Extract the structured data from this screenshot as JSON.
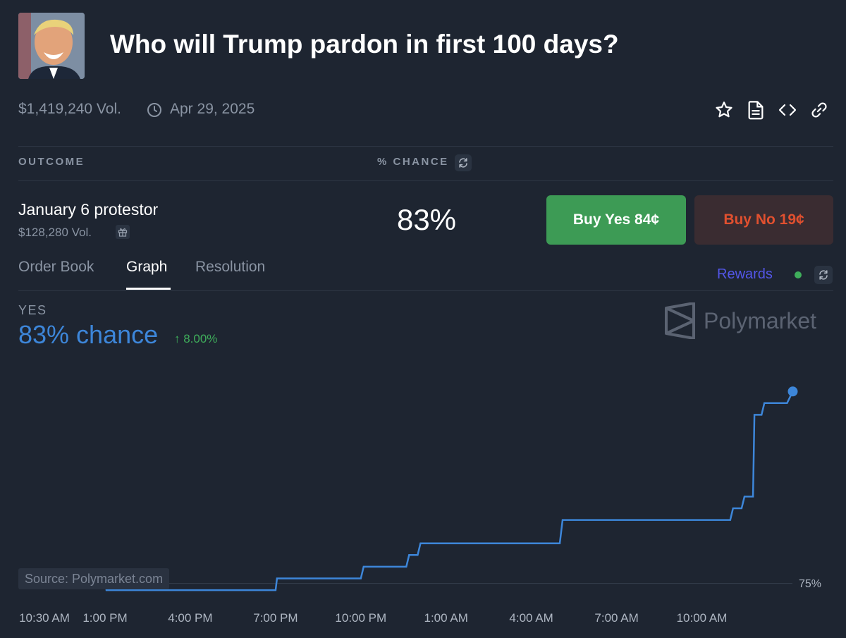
{
  "header": {
    "title": "Who will Trump pardon in first 100 days?",
    "volume": "$1,419,240 Vol.",
    "date": "Apr 29, 2025"
  },
  "table": {
    "col_outcome": "OUTCOME",
    "col_chance": "% CHANCE"
  },
  "outcome": {
    "name": "January 6 protestor",
    "volume": "$128,280 Vol.",
    "chance": "83%",
    "buy_yes": "Buy Yes 84¢",
    "buy_no": "Buy No 19¢"
  },
  "tabs": [
    {
      "label": "Order Book",
      "active": false
    },
    {
      "label": "Graph",
      "active": true
    },
    {
      "label": "Resolution",
      "active": false
    }
  ],
  "rewards_label": "Rewards",
  "graph": {
    "side_label": "YES",
    "chance_text": "83% chance",
    "change_text": "↑ 8.00%",
    "brand": "Polymarket",
    "source": "Source: Polymarket.com"
  },
  "colors": {
    "background": "#1e2531",
    "line": "#3d86d9",
    "buy_yes": "#3d9b55",
    "buy_no_text": "#e1502f",
    "rewards": "#5356e8",
    "change_up": "#3fae5b"
  },
  "icons": [
    "star-icon",
    "document-icon",
    "embed-code-icon",
    "link-icon",
    "clock-icon",
    "refresh-icon",
    "gift-icon"
  ],
  "chart_data": {
    "type": "line",
    "series": [
      {
        "name": "Yes",
        "x_hours": [
          0,
          2.5,
          2.55,
          8.5,
          8.55,
          11.5,
          11.6,
          13.1,
          13.2,
          13.5,
          13.6,
          18.5,
          18.6,
          24.5,
          24.6,
          24.9,
          25.0,
          25.3,
          25.35,
          25.6,
          25.7,
          26.5,
          26.7
        ],
        "values": [
          75.2,
          75.2,
          74.7,
          74.7,
          75.2,
          75.2,
          75.7,
          75.7,
          76.2,
          76.2,
          76.7,
          76.7,
          77.7,
          77.7,
          78.2,
          78.2,
          78.7,
          78.7,
          82.2,
          82.2,
          82.7,
          82.7,
          83.2
        ]
      }
    ],
    "x_ticks": [
      "10:30 AM",
      "1:00 PM",
      "4:00 PM",
      "7:00 PM",
      "10:00 PM",
      "1:00 AM",
      "4:00 AM",
      "7:00 AM",
      "10:00 AM"
    ],
    "x_tick_hours": [
      0,
      2.5,
      5.5,
      8.5,
      11.5,
      14.5,
      17.5,
      20.5,
      23.5
    ],
    "y_ticks": [
      "75%"
    ],
    "y_tick_values": [
      75
    ],
    "ylim": [
      74.4,
      83.6
    ],
    "xlim": [
      0,
      26.7
    ],
    "grid": "horizontal"
  }
}
